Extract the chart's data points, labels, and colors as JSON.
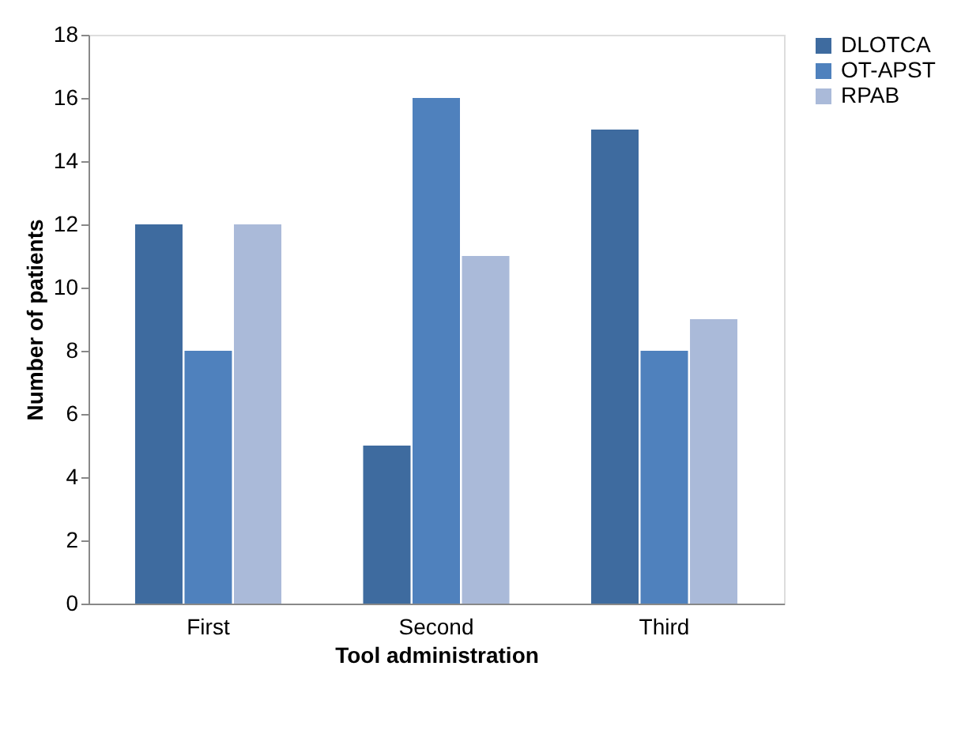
{
  "chart_data": {
    "type": "bar",
    "xlabel": "Tool administration",
    "ylabel": "Number of patients",
    "categories": [
      "First",
      "Second",
      "Third"
    ],
    "series": [
      {
        "name": "DLOTCA",
        "color": "#3e6b9f",
        "values": [
          12,
          5,
          15
        ]
      },
      {
        "name": "OT-APST",
        "color": "#4f81bd",
        "values": [
          8,
          16,
          8
        ]
      },
      {
        "name": "RPAB",
        "color": "#aabad9",
        "values": [
          12,
          11,
          9
        ]
      }
    ],
    "ylim": [
      0,
      18
    ],
    "yticks": [
      0,
      2,
      4,
      6,
      8,
      10,
      12,
      14,
      16,
      18
    ],
    "grid": false,
    "legend": "right"
  }
}
